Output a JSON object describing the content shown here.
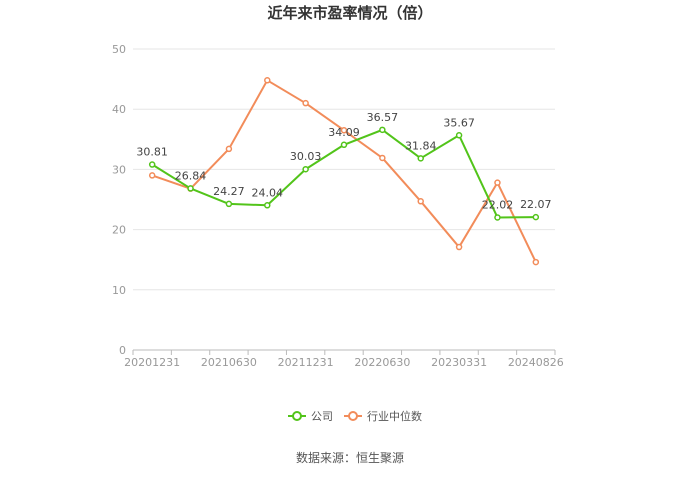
{
  "chart_data": {
    "type": "line",
    "title": "近年来市盈率情况（倍）",
    "source": "数据来源：恒生聚源",
    "ylim": [
      0,
      50
    ],
    "yticks": [
      0,
      10,
      20,
      30,
      40,
      50
    ],
    "x": [
      "20201231",
      "20210331",
      "20210630",
      "20210930",
      "20211231",
      "20220331",
      "20220630",
      "20220930",
      "20230331",
      "20230930",
      "20240826"
    ],
    "x_tick_labels": [
      "20201231",
      "20210630",
      "20211231",
      "20220630",
      "20230331",
      "20240826"
    ],
    "legend_position": "bottom",
    "grid": true,
    "series": [
      {
        "name": "公司",
        "color": "#52c41a",
        "values": [
          30.81,
          26.84,
          24.27,
          24.04,
          30.03,
          34.09,
          36.57,
          31.84,
          35.67,
          22.02,
          22.07
        ],
        "labels": [
          "30.81",
          "26.84",
          "24.27",
          "24.04",
          "30.03",
          "34.09",
          "36.57",
          "31.84",
          "35.67",
          "22.02",
          "22.07"
        ]
      },
      {
        "name": "行业中位数",
        "color": "#f28c5a",
        "values": [
          29.0,
          26.8,
          33.4,
          44.8,
          41.0,
          36.5,
          31.9,
          24.7,
          17.1,
          27.8,
          14.6
        ]
      }
    ]
  }
}
